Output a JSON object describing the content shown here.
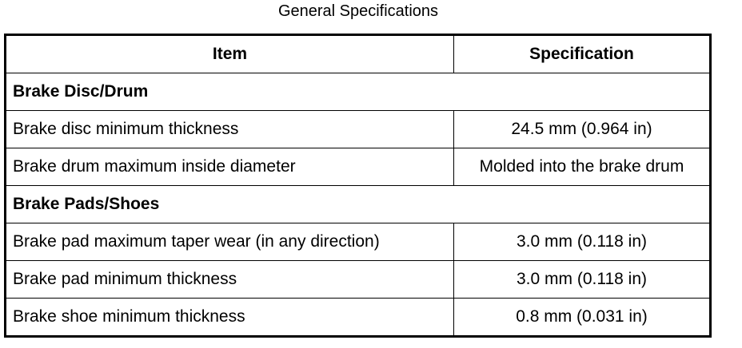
{
  "title": "General Specifications",
  "table": {
    "headers": [
      "Item",
      "Specification"
    ],
    "rows": [
      {
        "section": "Brake Disc/Drum"
      },
      {
        "item": "Brake disc minimum thickness",
        "spec": "24.5 mm (0.964 in)"
      },
      {
        "item": "Brake drum maximum inside diameter",
        "spec": "Molded into the brake drum"
      },
      {
        "section": "Brake Pads/Shoes"
      },
      {
        "item": "Brake pad maximum taper wear (in any direction)",
        "spec": "3.0 mm (0.118 in)"
      },
      {
        "item": "Brake pad minimum thickness",
        "spec": "3.0 mm (0.118 in)"
      },
      {
        "item": "Brake shoe minimum thickness",
        "spec": "0.8 mm (0.031 in)"
      }
    ]
  }
}
